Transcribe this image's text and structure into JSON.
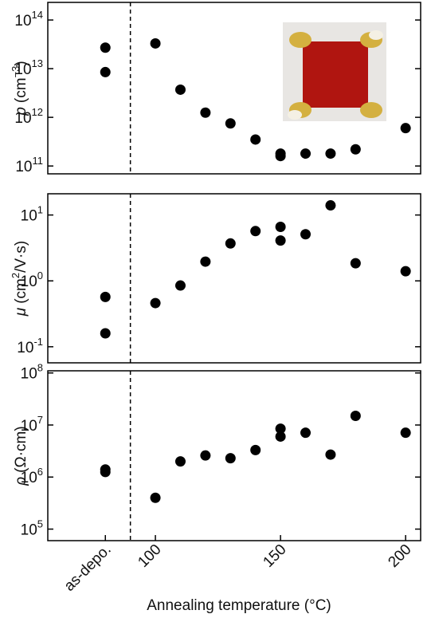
{
  "chart_data": [
    {
      "type": "scatter",
      "log_y": true,
      "ylabel": {
        "symbol": "p",
        "text": "(cm",
        "sup": "−3",
        "end": ")"
      },
      "x": [
        80,
        80,
        100,
        110,
        120,
        130,
        140,
        150,
        150,
        160,
        170,
        180,
        200
      ],
      "values": [
        27000000000000.0,
        8500000000000.0,
        33000000000000.0,
        3700000000000.0,
        1250000000000.0,
        750000000000.0,
        350000000000.0,
        180000000000.0,
        160000000000.0,
        180000000000.0,
        180000000000.0,
        220000000000.0,
        600000000000.0
      ],
      "color": "#000000",
      "xlim": [
        57,
        206
      ],
      "ylim": [
        69000000000.0,
        230000000000000.0
      ],
      "divider_x": 90,
      "yticks": [
        {
          "value": 100000000000.0,
          "label": "10",
          "sup": "11"
        },
        {
          "value": 1000000000000.0,
          "label": "10",
          "sup": "12"
        },
        {
          "value": 10000000000000.0,
          "label": "10",
          "sup": "13"
        },
        {
          "value": 100000000000000.0,
          "label": "10",
          "sup": "14"
        }
      ]
    },
    {
      "type": "scatter",
      "log_y": true,
      "ylabel": {
        "symbol": "μ",
        "text": "(cm",
        "sup": "2",
        "end": "/V·s)"
      },
      "x": [
        80,
        80,
        100,
        110,
        120,
        130,
        140,
        150,
        150,
        160,
        170,
        180,
        200
      ],
      "values": [
        0.57,
        0.16,
        0.46,
        0.85,
        1.96,
        3.7,
        5.7,
        6.6,
        4.1,
        5.1,
        14,
        1.85,
        1.4
      ],
      "color": "#000000",
      "xlim": [
        57,
        206
      ],
      "ylim": [
        0.057,
        21
      ],
      "divider_x": 90,
      "yticks": [
        {
          "value": 0.1,
          "label": "10",
          "sup": "-1"
        },
        {
          "value": 1,
          "label": "10",
          "sup": "0"
        },
        {
          "value": 10,
          "label": "10",
          "sup": "1"
        }
      ]
    },
    {
      "type": "scatter",
      "log_y": true,
      "ylabel": {
        "symbol": "ρ",
        "text": "(Ω·cm)"
      },
      "x": [
        80,
        80,
        100,
        110,
        120,
        130,
        140,
        150,
        150,
        160,
        170,
        180,
        200
      ],
      "values": [
        1400000.0,
        1250000.0,
        400000.0,
        2000000.0,
        2600000.0,
        2300000.0,
        3300000.0,
        8500000.0,
        6000000.0,
        7100000.0,
        2700000.0,
        15000000.0,
        7100000.0
      ],
      "color": "#000000",
      "xlim": [
        57,
        206
      ],
      "ylim": [
        60000.0,
        110000000.0
      ],
      "divider_x": 90,
      "yticks": [
        {
          "value": 100000.0,
          "label": "10",
          "sup": "5"
        },
        {
          "value": 1000000.0,
          "label": "10",
          "sup": "6"
        },
        {
          "value": 10000000.0,
          "label": "10",
          "sup": "7"
        },
        {
          "value": 100000000.0,
          "label": "10",
          "sup": "8"
        }
      ],
      "xlabel": "Annealing temperature (°C)",
      "xticks": [
        {
          "value": 80,
          "label": "as-depo."
        },
        100,
        150,
        200
      ]
    }
  ]
}
